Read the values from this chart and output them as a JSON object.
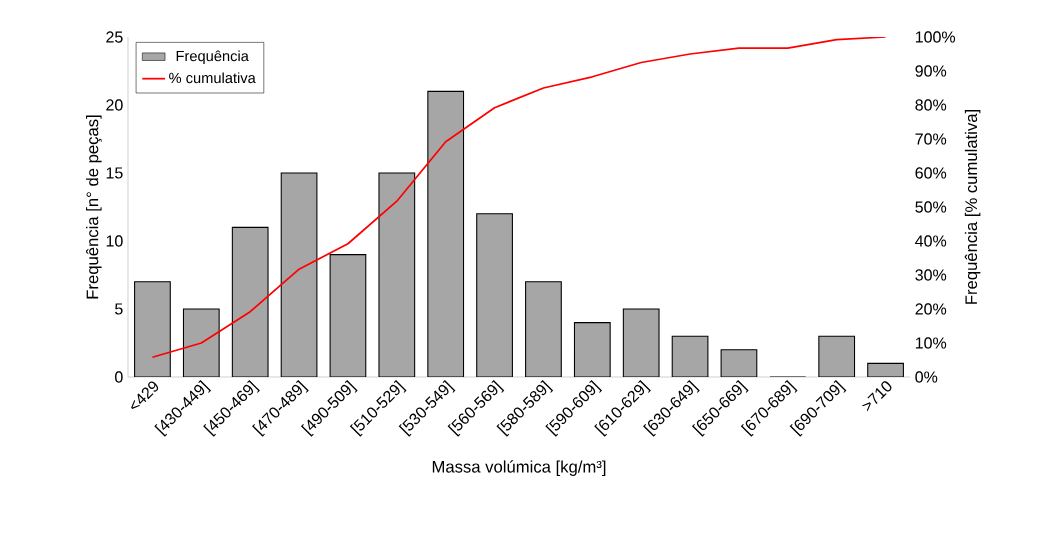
{
  "chart_data": {
    "type": "bar",
    "categories": [
      "<429",
      "[430-449]",
      "[450-469]",
      "[470-489]",
      "[490-509]",
      "[510-529]",
      "[530-549]",
      "[560-569]",
      "[580-589]",
      "[590-609]",
      "[610-629]",
      "[630-649]",
      "[650-669]",
      "[670-689]",
      "[690-709]",
      ">710"
    ],
    "xlabel": "Massa volúmica [kg/m³]",
    "ylabel": "Frequência [n° de peças]",
    "y2label": "Frequência [% cumulativa]",
    "ylim": [
      0,
      25
    ],
    "yticks": [
      0,
      5,
      10,
      15,
      20,
      25
    ],
    "y2lim": [
      0,
      100
    ],
    "y2ticks": [
      {
        "value": 0,
        "label": "0%"
      },
      {
        "value": 10,
        "label": "10%"
      },
      {
        "value": 20,
        "label": "20%"
      },
      {
        "value": 30,
        "label": "30%"
      },
      {
        "value": 40,
        "label": "40%"
      },
      {
        "value": 50,
        "label": "50%"
      },
      {
        "value": 60,
        "label": "60%"
      },
      {
        "value": 70,
        "label": "70%"
      },
      {
        "value": 80,
        "label": "80%"
      },
      {
        "value": 90,
        "label": "90%"
      },
      {
        "value": 100,
        "label": "100%"
      }
    ],
    "legend": "top left",
    "series": [
      {
        "name": "Frequência",
        "color": "#a6a6a6",
        "values": [
          7,
          5,
          11,
          15,
          9,
          15,
          21,
          12,
          7,
          4,
          5,
          3,
          2,
          0,
          3,
          1
        ]
      },
      {
        "type": "line",
        "axis": "y2",
        "name": "% cumulativa",
        "color": "#ff0000",
        "values": [
          5.8,
          10,
          19.2,
          31.7,
          39.2,
          51.7,
          69.2,
          79.2,
          85,
          88.3,
          92.5,
          95,
          96.7,
          96.7,
          99.2,
          100
        ]
      }
    ]
  }
}
